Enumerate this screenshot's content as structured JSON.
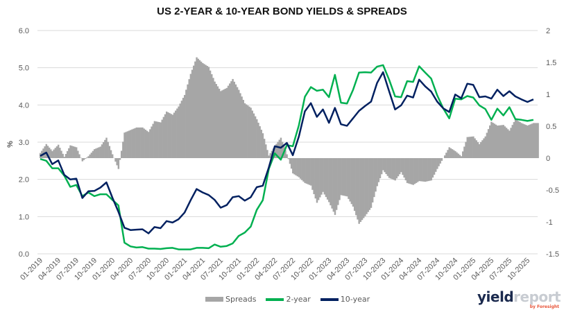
{
  "chart_data": {
    "type": "line",
    "title": "US 2-YEAR & 10-YEAR BOND YIELDS & SPREADS",
    "ylabel": "%",
    "ylim": [
      0,
      6
    ],
    "y2lim": [
      -1.5,
      2
    ],
    "yticks": [
      "0.0",
      "1.0",
      "2.0",
      "3.0",
      "4.0",
      "5.0",
      "6.0"
    ],
    "y2ticks": [
      "-1.5",
      "-1",
      "-0.5",
      "0",
      "0.5",
      "1",
      "1.5",
      "2"
    ],
    "grid": true,
    "legend": "bottom",
    "xticks": [
      "01-2019",
      "04-2019",
      "07-2019",
      "10-2019",
      "01-2020",
      "04-2020",
      "07-2020",
      "10-2020",
      "01-2021",
      "04-2021",
      "07-2021",
      "10-2021",
      "01-2022",
      "04-2022",
      "07-2022",
      "10-2022",
      "01-2023",
      "04-2023",
      "07-2023",
      "10-2023",
      "01-2024",
      "04-2024",
      "07-2024",
      "10-2024",
      "01-2025",
      "04-2025",
      "07-2025",
      "10-2025"
    ],
    "x_start": "01-2019",
    "x_interval": "monthly",
    "series": [
      {
        "name": "Spreads",
        "type": "bar",
        "axis": "right",
        "color": "#a6a6a6",
        "values": "10-year minus 2-year"
      },
      {
        "name": "2-year",
        "type": "line",
        "axis": "left",
        "color": "#00b050",
        "values": [
          2.55,
          2.5,
          2.3,
          2.3,
          2.1,
          1.8,
          1.85,
          1.55,
          1.65,
          1.55,
          1.6,
          1.6,
          1.45,
          1.3,
          0.3,
          0.2,
          0.17,
          0.18,
          0.14,
          0.14,
          0.13,
          0.15,
          0.16,
          0.12,
          0.12,
          0.12,
          0.16,
          0.16,
          0.15,
          0.25,
          0.19,
          0.21,
          0.28,
          0.48,
          0.57,
          0.73,
          1.18,
          1.44,
          2.28,
          2.7,
          2.53,
          2.92,
          2.89,
          3.45,
          4.22,
          4.48,
          4.38,
          4.41,
          4.21,
          4.81,
          4.06,
          4.04,
          4.4,
          4.87,
          4.88,
          4.87,
          5.03,
          5.07,
          4.68,
          4.23,
          4.21,
          4.64,
          4.62,
          5.04,
          4.87,
          4.71,
          4.26,
          3.91,
          3.64,
          4.17,
          4.15,
          4.24,
          4.2,
          3.99,
          3.89,
          3.6,
          3.9,
          3.72,
          3.94,
          3.62,
          3.6,
          3.57,
          3.6
        ]
      },
      {
        "name": "10-year",
        "type": "line",
        "axis": "left",
        "color": "#002060",
        "values": [
          2.63,
          2.72,
          2.41,
          2.51,
          2.12,
          2.0,
          2.02,
          1.5,
          1.68,
          1.69,
          1.78,
          1.92,
          1.51,
          1.13,
          0.7,
          0.64,
          0.65,
          0.66,
          0.55,
          0.72,
          0.69,
          0.88,
          0.84,
          0.93,
          1.11,
          1.44,
          1.74,
          1.65,
          1.58,
          1.45,
          1.24,
          1.31,
          1.52,
          1.55,
          1.43,
          1.52,
          1.79,
          1.83,
          2.32,
          2.89,
          2.85,
          2.98,
          2.65,
          3.15,
          3.83,
          4.05,
          3.68,
          3.88,
          3.52,
          3.92,
          3.48,
          3.44,
          3.64,
          3.84,
          3.97,
          4.09,
          4.59,
          4.88,
          4.37,
          3.88,
          3.99,
          4.25,
          4.2,
          4.68,
          4.5,
          4.36,
          4.09,
          3.91,
          3.81,
          4.28,
          4.18,
          4.57,
          4.54,
          4.21,
          4.23,
          4.17,
          4.41,
          4.24,
          4.37,
          4.23,
          4.15,
          4.08,
          4.15
        ]
      }
    ]
  },
  "logo": {
    "text1": "yield",
    "text2": "report",
    "by": "by Foresight"
  }
}
